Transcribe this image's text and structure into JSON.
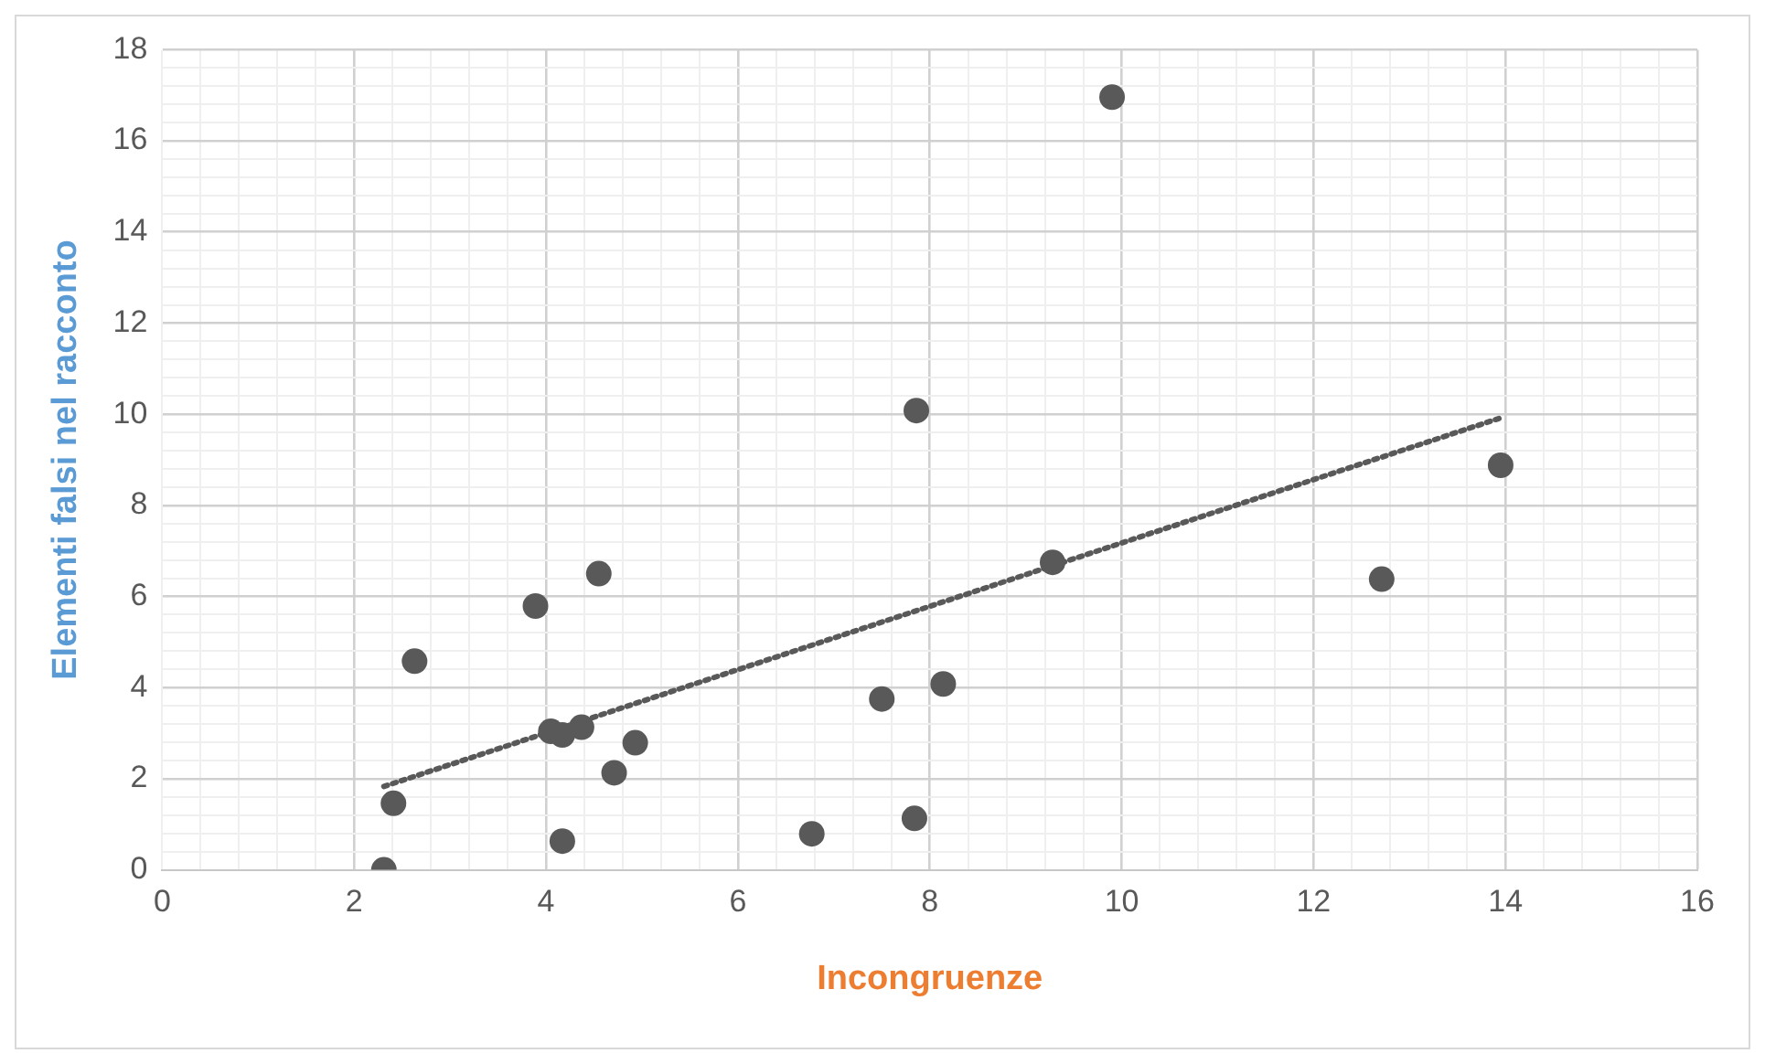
{
  "chart_data": {
    "type": "scatter",
    "xlabel": "Incongruenze",
    "ylabel": "Elementi falsi nel racconto",
    "grid": true,
    "legend": false,
    "xlim": [
      0,
      16
    ],
    "ylim": [
      0,
      18
    ],
    "xticks": [
      0,
      {
        "value": 0.4,
        "label": null
      },
      {
        "value": 0.8,
        "label": null
      },
      {
        "value": 1.2,
        "label": null
      },
      {
        "value": 1.6,
        "label": null
      },
      2,
      {
        "value": 2.4,
        "label": null
      },
      {
        "value": 2.8,
        "label": null
      },
      {
        "value": 3.2,
        "label": null
      },
      {
        "value": 3.6,
        "label": null
      },
      4,
      {
        "value": 4.4,
        "label": null
      },
      {
        "value": 4.8,
        "label": null
      },
      {
        "value": 5.2,
        "label": null
      },
      {
        "value": 5.6,
        "label": null
      },
      6,
      {
        "value": 6.4,
        "label": null
      },
      {
        "value": 6.8,
        "label": null
      },
      {
        "value": 7.2,
        "label": null
      },
      {
        "value": 7.6,
        "label": null
      },
      8,
      {
        "value": 8.4,
        "label": null
      },
      {
        "value": 8.8,
        "label": null
      },
      {
        "value": 9.2,
        "label": null
      },
      {
        "value": 9.6,
        "label": null
      },
      10,
      {
        "value": 10.4,
        "label": null
      },
      {
        "value": 10.8,
        "label": null
      },
      {
        "value": 11.2,
        "label": null
      },
      {
        "value": 11.6,
        "label": null
      },
      12,
      {
        "value": 12.4,
        "label": null
      },
      {
        "value": 12.8,
        "label": null
      },
      {
        "value": 13.2,
        "label": null
      },
      {
        "value": 13.6,
        "label": null
      },
      14,
      {
        "value": 14.4,
        "label": null
      },
      {
        "value": 14.8,
        "label": null
      },
      {
        "value": 15.2,
        "label": null
      },
      {
        "value": 15.6,
        "label": null
      },
      16
    ],
    "yticks": [
      0,
      {
        "value": 0.4,
        "label": null
      },
      {
        "value": 0.8,
        "label": null
      },
      {
        "value": 1.2,
        "label": null
      },
      {
        "value": 1.6,
        "label": null
      },
      2,
      {
        "value": 2.4,
        "label": null
      },
      {
        "value": 2.8,
        "label": null
      },
      {
        "value": 3.2,
        "label": null
      },
      {
        "value": 3.6,
        "label": null
      },
      4,
      {
        "value": 4.4,
        "label": null
      },
      {
        "value": 4.8,
        "label": null
      },
      {
        "value": 5.2,
        "label": null
      },
      {
        "value": 5.6,
        "label": null
      },
      6,
      {
        "value": 6.4,
        "label": null
      },
      {
        "value": 6.8,
        "label": null
      },
      {
        "value": 7.2,
        "label": null
      },
      {
        "value": 7.6,
        "label": null
      },
      8,
      {
        "value": 8.4,
        "label": null
      },
      {
        "value": 8.8,
        "label": null
      },
      {
        "value": 9.2,
        "label": null
      },
      {
        "value": 9.6,
        "label": null
      },
      10,
      {
        "value": 10.4,
        "label": null
      },
      {
        "value": 10.8,
        "label": null
      },
      {
        "value": 11.2,
        "label": null
      },
      {
        "value": 11.6,
        "label": null
      },
      12,
      {
        "value": 12.4,
        "label": null
      },
      {
        "value": 12.8,
        "label": null
      },
      {
        "value": 13.2,
        "label": null
      },
      {
        "value": 13.6,
        "label": null
      },
      14,
      {
        "value": 14.4,
        "label": null
      },
      {
        "value": 14.8,
        "label": null
      },
      {
        "value": 15.2,
        "label": null
      },
      {
        "value": 15.6,
        "label": null
      },
      16,
      {
        "value": 16.4,
        "label": null
      },
      {
        "value": 16.8,
        "label": null
      },
      {
        "value": 17.2,
        "label": null
      },
      {
        "value": 17.6,
        "label": null
      },
      18
    ],
    "series": [
      {
        "type": "scatter",
        "color": "#595959",
        "marker": "circle",
        "x": [
          2.31,
          2.41,
          2.63,
          3.89,
          4.05,
          4.17,
          4.37,
          4.55,
          4.17,
          4.71,
          4.93,
          6.77,
          7.5,
          7.86,
          7.84,
          8.14,
          9.28,
          9.9,
          12.71,
          13.95
        ],
        "values": [
          0,
          1.46,
          4.58,
          5.79,
          3.04,
          2.96,
          3.13,
          6.5,
          0.63,
          2.13,
          2.79,
          0.79,
          3.75,
          10.08,
          1.13,
          4.08,
          6.75,
          16.96,
          6.38,
          8.88
        ]
      },
      {
        "type": "line",
        "color": "#595959",
        "line_style": "dotted",
        "marker": "none",
        "x": [
          2.31,
          13.95
        ],
        "values": [
          1.83,
          9.92
        ]
      }
    ]
  }
}
